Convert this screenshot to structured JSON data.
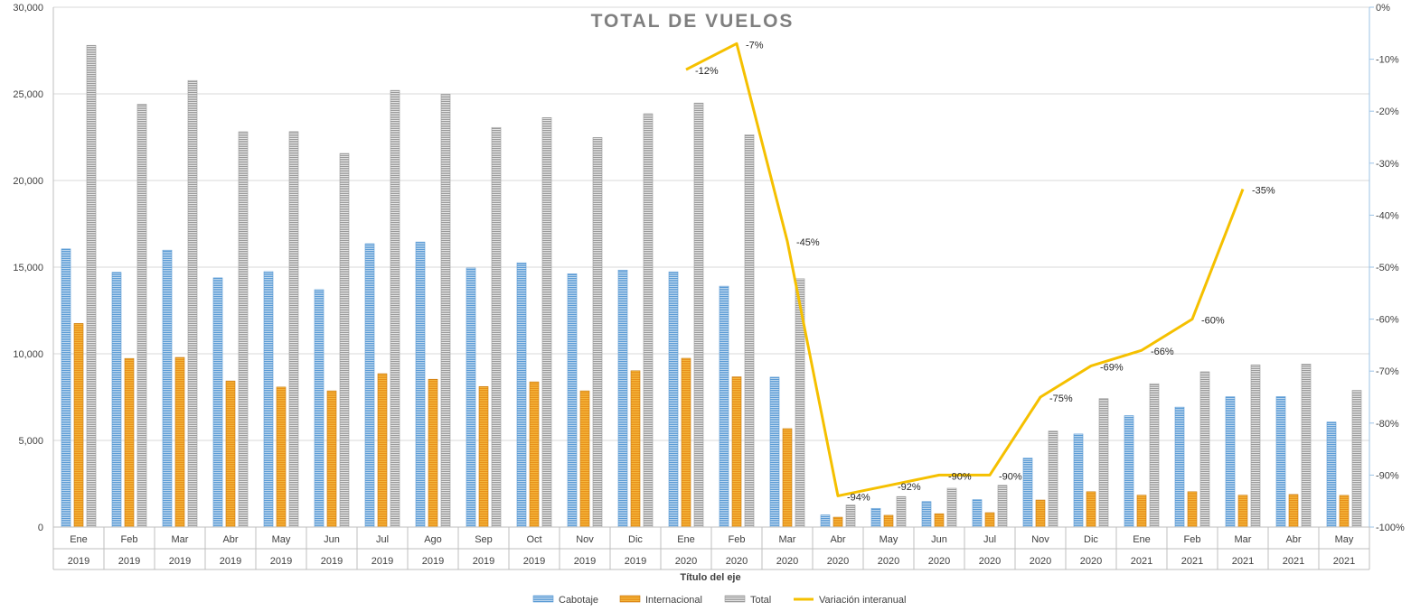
{
  "chart_data": {
    "type": "bar",
    "title": "TOTAL DE VUELOS",
    "xlabel": "Título del eje",
    "ylabel": "",
    "ylim": [
      0,
      30000
    ],
    "y_ticks": [
      "0",
      "5,000",
      "10,000",
      "15,000",
      "20,000",
      "25,000",
      "30,000"
    ],
    "y2lim": [
      -100,
      0
    ],
    "y2_ticks": [
      "-100%",
      "-90%",
      "-80%",
      "-70%",
      "-60%",
      "-50%",
      "-40%",
      "-30%",
      "-20%",
      "-10%",
      "0%"
    ],
    "categories": [
      {
        "month": "Ene",
        "year": "2019"
      },
      {
        "month": "Feb",
        "year": "2019"
      },
      {
        "month": "Mar",
        "year": "2019"
      },
      {
        "month": "Abr",
        "year": "2019"
      },
      {
        "month": "May",
        "year": "2019"
      },
      {
        "month": "Jun",
        "year": "2019"
      },
      {
        "month": "Jul",
        "year": "2019"
      },
      {
        "month": "Ago",
        "year": "2019"
      },
      {
        "month": "Sep",
        "year": "2019"
      },
      {
        "month": "Oct",
        "year": "2019"
      },
      {
        "month": "Nov",
        "year": "2019"
      },
      {
        "month": "Dic",
        "year": "2019"
      },
      {
        "month": "Ene",
        "year": "2020"
      },
      {
        "month": "Feb",
        "year": "2020"
      },
      {
        "month": "Mar",
        "year": "2020"
      },
      {
        "month": "Abr",
        "year": "2020"
      },
      {
        "month": "May",
        "year": "2020"
      },
      {
        "month": "Jun",
        "year": "2020"
      },
      {
        "month": "Jul",
        "year": "2020"
      },
      {
        "month": "Nov",
        "year": "2020"
      },
      {
        "month": "Dic",
        "year": "2020"
      },
      {
        "month": "Ene",
        "year": "2021"
      },
      {
        "month": "Feb",
        "year": "2021"
      },
      {
        "month": "Mar",
        "year": "2021"
      },
      {
        "month": "Abr",
        "year": "2021"
      },
      {
        "month": "May",
        "year": "2021"
      }
    ],
    "series": [
      {
        "name": "Cabotaje",
        "kind": "bar",
        "color": "#5b9bd5",
        "values": [
          16050,
          14700,
          15980,
          14380,
          14740,
          13700,
          16350,
          16450,
          14950,
          15250,
          14620,
          14830,
          14730,
          13900,
          8650,
          700,
          1080,
          1470,
          1580,
          3980,
          5370,
          6430,
          6920,
          7520,
          7530,
          6060
        ]
      },
      {
        "name": "Internacional",
        "kind": "bar",
        "color": "#ed9d2b",
        "values": [
          11750,
          9730,
          9790,
          8430,
          8080,
          7860,
          8850,
          8530,
          8110,
          8380,
          7860,
          9020,
          9740,
          8670,
          5680,
          570,
          680,
          770,
          830,
          1560,
          2040,
          1840,
          2040,
          1840,
          1880,
          1830
        ]
      },
      {
        "name": "Total",
        "kind": "bar",
        "color": "#a5a5a5",
        "values": [
          27800,
          24400,
          25770,
          22810,
          22820,
          21560,
          25200,
          24980,
          23060,
          23630,
          22480,
          23850,
          24470,
          22640,
          14330,
          1270,
          1760,
          2240,
          2410,
          5540,
          7410,
          8270,
          8960,
          9360,
          9410,
          7890
        ]
      },
      {
        "name": "Variación interanual",
        "kind": "line",
        "axis": "secondary",
        "color": "#f5c000",
        "values": [
          null,
          null,
          null,
          null,
          null,
          null,
          null,
          null,
          null,
          null,
          null,
          null,
          -12,
          -7,
          -45,
          -94,
          -92,
          -90,
          -90,
          -75,
          -69,
          -66,
          -60,
          -35,
          null,
          null
        ],
        "labels": [
          "",
          "",
          "",
          "",
          "",
          "",
          "",
          "",
          "",
          "",
          "",
          "",
          "-12%",
          "-7%",
          "-45%",
          "-94%",
          "-92%",
          "-90%",
          "-90%",
          "-75%",
          "-69%",
          "-66%",
          "-60%",
          "-35%",
          "",
          ""
        ]
      }
    ],
    "grid": true,
    "legend": "bottom"
  }
}
